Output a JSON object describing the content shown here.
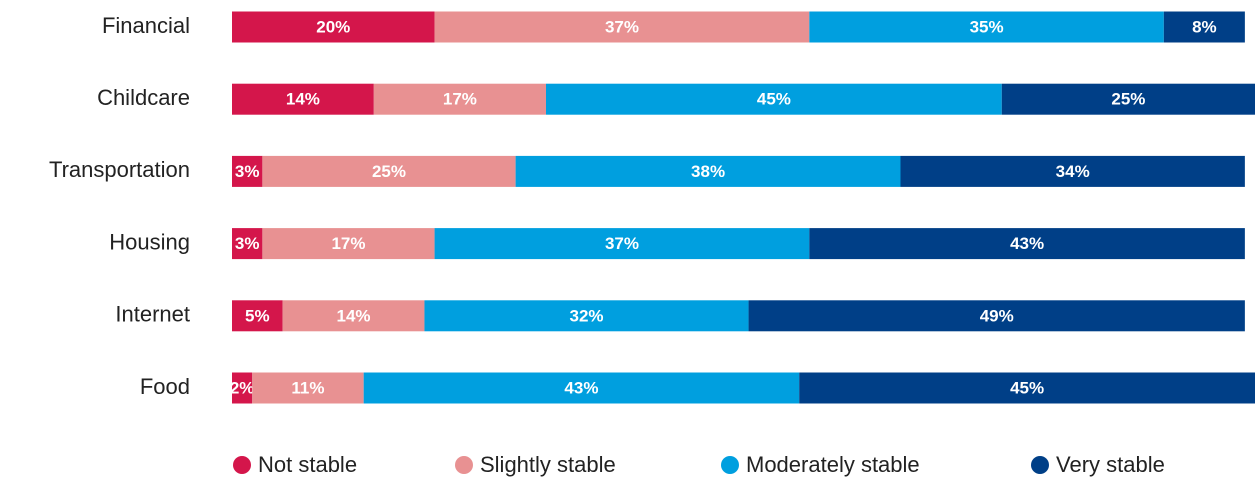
{
  "chart_data": {
    "type": "stacked-bar-horizontal",
    "categories": [
      "Financial",
      "Childcare",
      "Transportation",
      "Housing",
      "Internet",
      "Food"
    ],
    "series": [
      {
        "name": "Not stable",
        "color": "#d4164b",
        "values": [
          20,
          14,
          3,
          3,
          5,
          2
        ],
        "value_labels": [
          "20%",
          "14%",
          "3%",
          "3%",
          "5%",
          "2%"
        ]
      },
      {
        "name": "Slightly stable",
        "color": "#e89192",
        "values": [
          37,
          17,
          25,
          17,
          14,
          11
        ],
        "value_labels": [
          "37%",
          "17%",
          "25%",
          "17%",
          "14%",
          "11%"
        ]
      },
      {
        "name": "Moderately stable",
        "color": "#009fdf",
        "values": [
          35,
          45,
          38,
          37,
          32,
          43
        ],
        "value_labels": [
          "35%",
          "45%",
          "38%",
          "37%",
          "32%",
          "43%"
        ]
      },
      {
        "name": "Very stable",
        "color": "#003f87",
        "values": [
          8,
          25,
          34,
          43,
          49,
          45
        ],
        "value_labels": [
          "8%",
          "25%",
          "34%",
          "43%",
          "49%",
          "45%"
        ]
      }
    ],
    "legend": "bottom"
  }
}
